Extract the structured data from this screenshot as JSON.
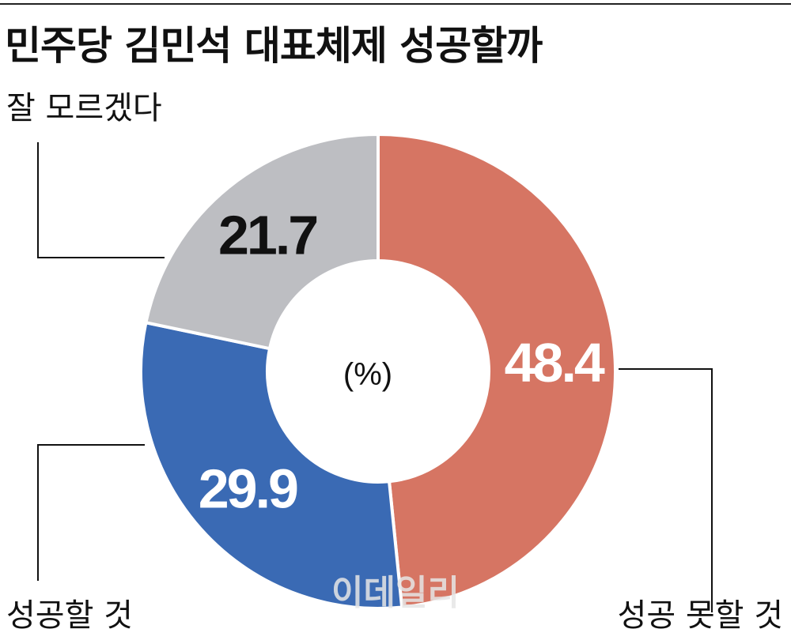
{
  "header": {
    "title": "민주당 김민석 대표체제 성공할까"
  },
  "chart_data": {
    "type": "pie",
    "title": "민주당 김민석 대표체제 성공할까",
    "unit": "(%)",
    "donut": true,
    "start_angle_deg": 0,
    "direction": "clockwise",
    "slices": [
      {
        "label": "성공 못할 것",
        "value": 48.4,
        "display": "48.4",
        "color": "#d67563",
        "text_color": "#ffffff"
      },
      {
        "label": "성공할 것",
        "value": 29.9,
        "display": "29.9",
        "color": "#3a6ab4",
        "text_color": "#ffffff"
      },
      {
        "label": "잘 모르겠다",
        "value": 21.7,
        "display": "21.7",
        "color": "#bdbec2",
        "text_color": "#111111"
      }
    ]
  },
  "watermark": "이데일리"
}
